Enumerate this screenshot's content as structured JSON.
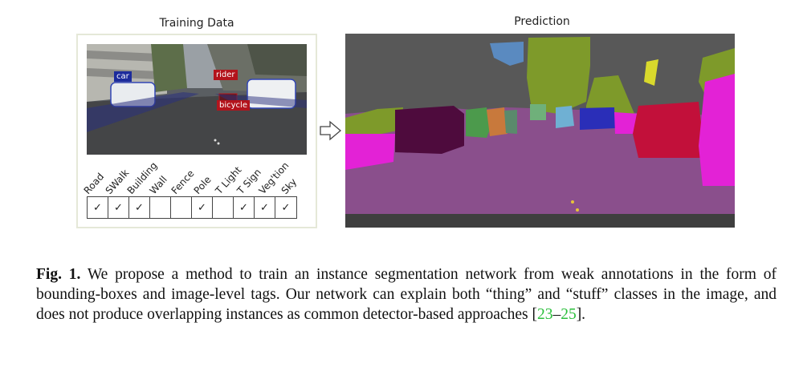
{
  "figure": {
    "left_title": "Training Data",
    "right_title": "Prediction",
    "box_tags": {
      "car": "car",
      "rider": "rider",
      "bicycle": "bicycle"
    },
    "image_tags": [
      {
        "label": "Road",
        "checked": true
      },
      {
        "label": "SWalk",
        "checked": true
      },
      {
        "label": "Building",
        "checked": true
      },
      {
        "label": "Wall",
        "checked": false
      },
      {
        "label": "Fence",
        "checked": false
      },
      {
        "label": "Pole",
        "checked": true
      },
      {
        "label": "T Light",
        "checked": false
      },
      {
        "label": "T Sign",
        "checked": true
      },
      {
        "label": "Veg'tion",
        "checked": true
      },
      {
        "label": "Sky",
        "checked": true
      }
    ],
    "check_glyph": "✓",
    "colors": {
      "road": "#8a4f8c",
      "sky_void": "#585858",
      "vegetation": "#7e9a2a",
      "car": "#c2103a",
      "car_dark": "#4e0b3d",
      "sidewalk": "#e322d6",
      "pole": "#e0d83a",
      "citation": "#2bbf3c"
    }
  },
  "caption": {
    "label": "Fig. 1.",
    "text_1": " We propose a method to train an instance segmentation network from weak annotations in the form of bounding-boxes and image-level tags. Our network can explain both “thing” and “stuff” classes in the image, and does not produce overlapping instances as common detector-based approaches [",
    "cite_start": "23",
    "dash": "–",
    "cite_end": "25",
    "text_2": "]."
  }
}
